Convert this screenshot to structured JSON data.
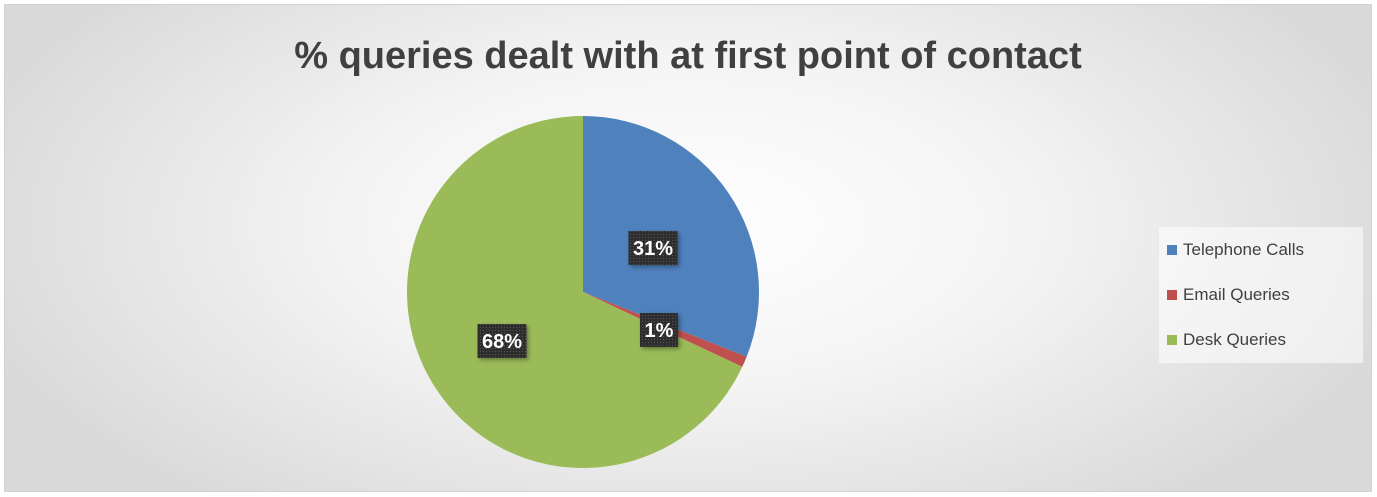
{
  "chart_data": {
    "type": "pie",
    "title": "% queries dealt with at first point of contact",
    "categories": [
      "Telephone Calls",
      "Email Queries",
      "Desk Queries"
    ],
    "values": [
      31,
      1,
      68
    ],
    "labels": [
      "31%",
      "1%",
      "68%"
    ],
    "colors": [
      "#4f81bd",
      "#c0504d",
      "#9bbb59"
    ],
    "legend_position": "right"
  }
}
